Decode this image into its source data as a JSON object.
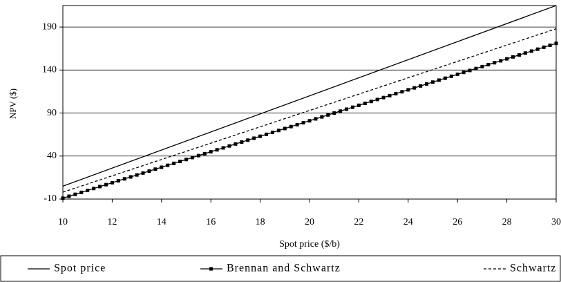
{
  "chart_data": {
    "type": "line",
    "xlabel": "Spot price ($/b)",
    "ylabel": "NPV ($)",
    "xlim": [
      10,
      30
    ],
    "xticks": [
      10,
      12,
      14,
      16,
      18,
      20,
      22,
      24,
      26,
      28,
      30
    ],
    "ylim": [
      -10,
      215
    ],
    "yticks": [
      -10,
      40,
      90,
      140,
      190
    ],
    "grid": true,
    "legend": "bottom",
    "series": [
      {
        "name": "Spot price",
        "color": "#000000",
        "style": "solid",
        "x": [
          10,
          30
        ],
        "values": [
          5,
          215
        ]
      },
      {
        "name": "Brennan and Schwartz",
        "color": "#000000",
        "style": "square-markers",
        "x": [
          10,
          10.25,
          10.5,
          10.75,
          11,
          11.25,
          11.5,
          11.75,
          12,
          12.25,
          12.5,
          12.75,
          13,
          13.25,
          13.5,
          13.75,
          14,
          14.25,
          14.5,
          14.75,
          15,
          15.25,
          15.5,
          15.75,
          16,
          16.25,
          16.5,
          16.75,
          17,
          17.25,
          17.5,
          17.75,
          18,
          18.25,
          18.5,
          18.75,
          19,
          19.25,
          19.5,
          19.75,
          20,
          20.25,
          20.5,
          20.75,
          21,
          21.25,
          21.5,
          21.75,
          22,
          22.25,
          22.5,
          22.75,
          23,
          23.25,
          23.5,
          23.75,
          24,
          24.25,
          24.5,
          24.75,
          25,
          25.25,
          25.5,
          25.75,
          26,
          26.25,
          26.5,
          26.75,
          27,
          27.25,
          27.5,
          27.75,
          28,
          28.25,
          28.5,
          28.75,
          29,
          29.25,
          29.5,
          29.75,
          30
        ],
        "values": [
          -9,
          -6.75,
          -4.5,
          -2.25,
          0,
          2.25,
          4.5,
          6.75,
          9,
          11.25,
          13.5,
          15.75,
          18,
          20.25,
          22.5,
          24.75,
          27,
          29.25,
          31.5,
          33.75,
          36,
          38.25,
          40.5,
          42.75,
          45,
          47.25,
          49.5,
          51.75,
          54,
          56.25,
          58.5,
          60.75,
          63,
          65.25,
          67.5,
          69.75,
          72,
          74.25,
          76.5,
          78.75,
          81,
          83.25,
          85.5,
          87.75,
          90,
          92.25,
          94.5,
          96.75,
          99,
          101.25,
          103.5,
          105.75,
          108,
          110.25,
          112.5,
          114.75,
          117,
          119.25,
          121.5,
          123.75,
          126,
          128.25,
          130.5,
          132.75,
          135,
          137.25,
          139.5,
          141.75,
          144,
          146.25,
          148.5,
          150.75,
          153,
          155.25,
          157.5,
          159.75,
          162,
          164.25,
          166.5,
          168.75,
          171
        ]
      },
      {
        "name": "Schwartz",
        "color": "#000000",
        "style": "dashed",
        "x": [
          10,
          30
        ],
        "values": [
          -2,
          188
        ]
      }
    ]
  }
}
